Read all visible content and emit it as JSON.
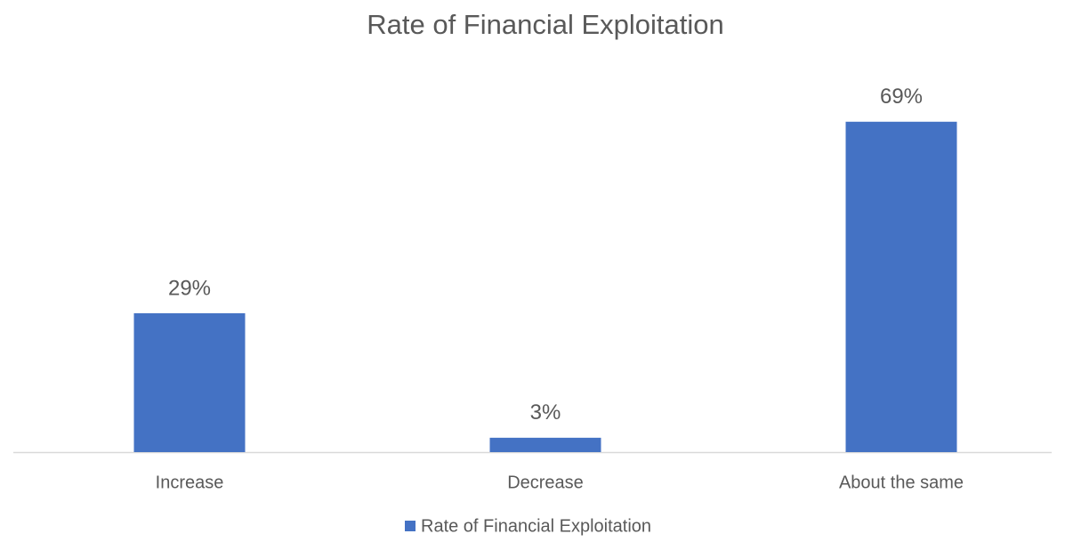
{
  "chart_data": {
    "type": "bar",
    "title": "Rate of Financial Exploitation",
    "categories": [
      "Increase",
      "Decrease",
      "About the same"
    ],
    "series": [
      {
        "name": "Rate of Financial Exploitation",
        "color": "#4472c4",
        "values": [
          29,
          3,
          69
        ],
        "value_labels": [
          "29%",
          "3%",
          "69%"
        ]
      }
    ]
  }
}
